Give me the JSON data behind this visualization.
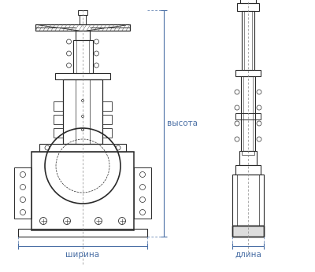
{
  "bg_color": "#ffffff",
  "line_color": "#2a2a2a",
  "dim_color": "#4a6fa5",
  "text_color": "#4a6fa5",
  "label_vysota": "высота",
  "label_shirina": "ширина",
  "label_dlina": "длина",
  "fig_width": 4.0,
  "fig_height": 3.46,
  "dpi": 100
}
